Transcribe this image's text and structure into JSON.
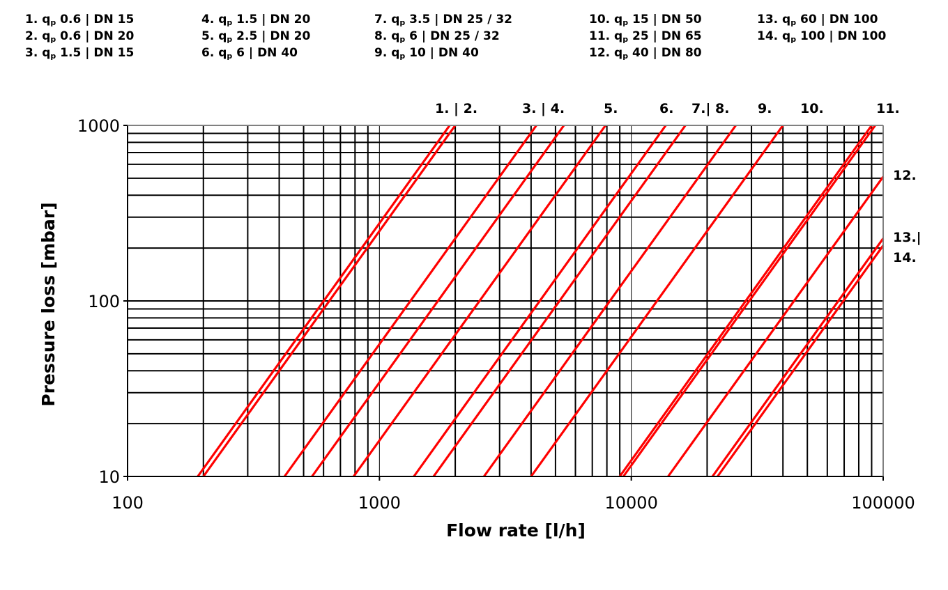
{
  "legend": [
    {
      "num": "1.",
      "flow": "0.6",
      "dn": "DN 15"
    },
    {
      "num": "2.",
      "flow": "0.6",
      "dn": "DN 20"
    },
    {
      "num": "3.",
      "flow": "1.5",
      "dn": "DN 15"
    },
    {
      "num": "4.",
      "flow": "1.5",
      "dn": "DN 20"
    },
    {
      "num": "5.",
      "flow": "2.5",
      "dn": "DN 20"
    },
    {
      "num": "6.",
      "flow": "6",
      "dn": "DN 40"
    },
    {
      "num": "7.",
      "flow": "3.5",
      "dn": "DN 25 / 32"
    },
    {
      "num": "8.",
      "flow": "6",
      "dn": "DN 25 / 32"
    },
    {
      "num": "9.",
      "flow": "10",
      "dn": "DN 40"
    },
    {
      "num": "10.",
      "flow": "15",
      "dn": "DN 50"
    },
    {
      "num": "11.",
      "flow": "25",
      "dn": "DN 65"
    },
    {
      "num": "12.",
      "flow": "40",
      "dn": "DN 80"
    },
    {
      "num": "13.",
      "flow": "60",
      "dn": "DN 100"
    },
    {
      "num": "14.",
      "flow": "100",
      "dn": "DN 100"
    }
  ],
  "legend_symbol": "q",
  "legend_symbol_sub": "p",
  "line_labels_top": [
    "1. | 2.",
    "3. | 4.",
    "5.",
    "6.",
    "7.| 8.",
    "9.",
    "10.",
    "11."
  ],
  "line_labels_right": [
    "12.",
    "13.|",
    "14."
  ],
  "colors": {
    "series": "#ff0000",
    "grid": "#000000",
    "axis": "#808080"
  },
  "chart_data": {
    "type": "line",
    "xlabel": "Flow rate [l/h]",
    "ylabel": "Pressure loss [mbar]",
    "x_scale": "log",
    "y_scale": "log",
    "xlim": [
      100,
      100000
    ],
    "ylim": [
      10,
      1000
    ],
    "x_ticks": [
      "100",
      "1000",
      "10000",
      "100000"
    ],
    "y_ticks": [
      "10",
      "100",
      "1000"
    ],
    "grid": true,
    "series": [
      {
        "name": "1.",
        "x": [
          190,
          1900
        ],
        "y": [
          10,
          1000
        ]
      },
      {
        "name": "2.",
        "x": [
          200,
          2000
        ],
        "y": [
          10,
          1000
        ]
      },
      {
        "name": "3.",
        "x": [
          420,
          4200
        ],
        "y": [
          10,
          1000
        ]
      },
      {
        "name": "4.",
        "x": [
          540,
          5400
        ],
        "y": [
          10,
          1000
        ]
      },
      {
        "name": "5.",
        "x": [
          790,
          7900
        ],
        "y": [
          10,
          1000
        ]
      },
      {
        "name": "6.",
        "x": [
          1370,
          13700
        ],
        "y": [
          10,
          1000
        ]
      },
      {
        "name": "7.",
        "x": [
          1640,
          16400
        ],
        "y": [
          10,
          1000
        ]
      },
      {
        "name": "8.",
        "x": [
          2600,
          26000
        ],
        "y": [
          10,
          1000
        ]
      },
      {
        "name": "9.",
        "x": [
          4000,
          40000
        ],
        "y": [
          10,
          1000
        ]
      },
      {
        "name": "10.",
        "x": [
          9000,
          90000
        ],
        "y": [
          10,
          1000
        ]
      },
      {
        "name": "11.",
        "x": [
          9300,
          93000
        ],
        "y": [
          10,
          1000
        ]
      },
      {
        "name": "12.",
        "x": [
          14000,
          100000
        ],
        "y": [
          10,
          510
        ]
      },
      {
        "name": "13.",
        "x": [
          21000,
          100000
        ],
        "y": [
          10,
          227
        ]
      },
      {
        "name": "14.",
        "x": [
          22000,
          100000
        ],
        "y": [
          10,
          207
        ]
      }
    ]
  }
}
